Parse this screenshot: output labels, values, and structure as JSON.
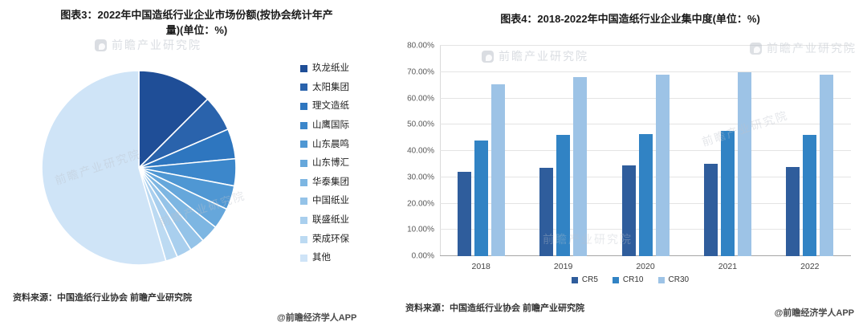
{
  "watermark": {
    "tile_text": "前瞻产业研究院",
    "handle": "@前瞻经济学人APP"
  },
  "left_panel": {
    "source": "资料来源：中国造纸行业协会 前瞻产业研究院"
  },
  "right_panel": {
    "source": "资料来源：中国造纸行业协会 前瞻产业研究院"
  },
  "chart_data": [
    {
      "type": "pie",
      "title": "图表3：2022年中国造纸行业企业市场份额(按协会统计年产量)(单位：%)",
      "labels": [
        "玖龙纸业",
        "太阳集团",
        "理文造纸",
        "山鹰国际",
        "山东晨鸣",
        "山东博汇",
        "华泰集团",
        "中国纸业",
        "联盛纸业",
        "荣成环保",
        "其他"
      ],
      "values": [
        12.5,
        6,
        5,
        4.5,
        4,
        3.5,
        3,
        2.5,
        2.5,
        2,
        54.5
      ],
      "colors": [
        "#1f4e97",
        "#2a63ac",
        "#2e76bf",
        "#3c87cb",
        "#4f97d3",
        "#66a7db",
        "#7db6e2",
        "#94c3e8",
        "#a9cfee",
        "#bcdaf2",
        "#cfe4f7"
      ],
      "start_angle_deg": 0,
      "direction": "clockwise",
      "legend_position": "right"
    },
    {
      "type": "bar",
      "title": "图表4：2018-2022年中国造纸行业企业集中度(单位：%)",
      "categories": [
        "2018",
        "2019",
        "2020",
        "2021",
        "2022"
      ],
      "series": [
        {
          "name": "CR5",
          "color": "#2f5d9c",
          "values": [
            32,
            33.5,
            34.5,
            35,
            34
          ]
        },
        {
          "name": "CR10",
          "color": "#3183c4",
          "values": [
            44,
            46,
            46.5,
            47.5,
            46
          ]
        },
        {
          "name": "CR30",
          "color": "#9dc3e6",
          "values": [
            65.5,
            68,
            69,
            70,
            69
          ]
        }
      ],
      "ylim": [
        0,
        80
      ],
      "ytick_labels": [
        "0.00%",
        "10.00%",
        "20.00%",
        "30.00%",
        "40.00%",
        "50.00%",
        "60.00%",
        "70.00%",
        "80.00%"
      ],
      "grid": true,
      "legend_position": "bottom"
    }
  ]
}
